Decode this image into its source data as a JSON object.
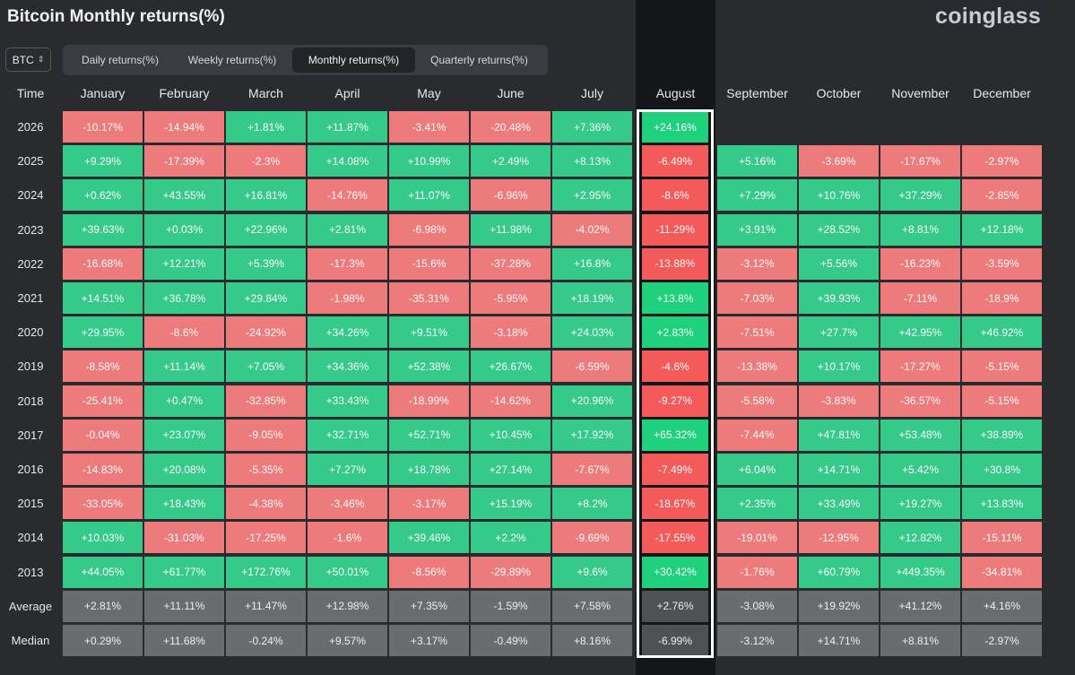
{
  "title": "Bitcoin Monthly returns(%)",
  "logo": "coinglass",
  "asset_select": {
    "value": "BTC"
  },
  "tabs": [
    "Daily returns(%)",
    "Weekly returns(%)",
    "Monthly returns(%)",
    "Quarterly returns(%)"
  ],
  "active_tab": "Monthly returns(%)",
  "colors": {
    "positive": "#35c98a",
    "negative": "#ee7b7b",
    "stat": "#6b6c70",
    "highlight_border": "#ffffff"
  },
  "highlighted_month": "August",
  "table": {
    "corner_label": "Time",
    "months": [
      "January",
      "February",
      "March",
      "April",
      "May",
      "June",
      "July",
      "August",
      "September",
      "October",
      "November",
      "December"
    ],
    "rows": [
      {
        "label": "2026",
        "values": [
          "-10.17%",
          "-14.94%",
          "+1.81%",
          "+11.87%",
          "-3.41%",
          "-20.48%",
          "+7.36%",
          "+24.16%",
          "",
          "",
          "",
          ""
        ]
      },
      {
        "label": "2025",
        "values": [
          "+9.29%",
          "-17.39%",
          "-2.3%",
          "+14.08%",
          "+10.99%",
          "+2.49%",
          "+8.13%",
          "-6.49%",
          "+5.16%",
          "-3.69%",
          "-17.67%",
          "-2.97%"
        ]
      },
      {
        "label": "2024",
        "values": [
          "+0.62%",
          "+43.55%",
          "+16.81%",
          "-14.76%",
          "+11.07%",
          "-6.96%",
          "+2.95%",
          "-8.6%",
          "+7.29%",
          "+10.76%",
          "+37.29%",
          "-2.85%"
        ]
      },
      {
        "label": "2023",
        "values": [
          "+39.63%",
          "+0.03%",
          "+22.96%",
          "+2.81%",
          "-6.98%",
          "+11.98%",
          "-4.02%",
          "-11.29%",
          "+3.91%",
          "+28.52%",
          "+8.81%",
          "+12.18%"
        ]
      },
      {
        "label": "2022",
        "values": [
          "-16.68%",
          "+12.21%",
          "+5.39%",
          "-17.3%",
          "-15.6%",
          "-37.28%",
          "+16.8%",
          "-13.88%",
          "-3.12%",
          "+5.56%",
          "-16.23%",
          "-3.59%"
        ]
      },
      {
        "label": "2021",
        "values": [
          "+14.51%",
          "+36.78%",
          "+29.84%",
          "-1.98%",
          "-35.31%",
          "-5.95%",
          "+18.19%",
          "+13.8%",
          "-7.03%",
          "+39.93%",
          "-7.11%",
          "-18.9%"
        ]
      },
      {
        "label": "2020",
        "values": [
          "+29.95%",
          "-8.6%",
          "-24.92%",
          "+34.26%",
          "+9.51%",
          "-3.18%",
          "+24.03%",
          "+2.83%",
          "-7.51%",
          "+27.7%",
          "+42.95%",
          "+46.92%"
        ]
      },
      {
        "label": "2019",
        "values": [
          "-8.58%",
          "+11.14%",
          "+7.05%",
          "+34.36%",
          "+52.38%",
          "+26.67%",
          "-6.59%",
          "-4.6%",
          "-13.38%",
          "+10.17%",
          "-17.27%",
          "-5.15%"
        ]
      },
      {
        "label": "2018",
        "values": [
          "-25.41%",
          "+0.47%",
          "-32.85%",
          "+33.43%",
          "-18.99%",
          "-14.62%",
          "+20.96%",
          "-9.27%",
          "-5.58%",
          "-3.83%",
          "-36.57%",
          "-5.15%"
        ]
      },
      {
        "label": "2017",
        "values": [
          "-0.04%",
          "+23.07%",
          "-9.05%",
          "+32.71%",
          "+52.71%",
          "+10.45%",
          "+17.92%",
          "+65.32%",
          "-7.44%",
          "+47.81%",
          "+53.48%",
          "+38.89%"
        ]
      },
      {
        "label": "2016",
        "values": [
          "-14.83%",
          "+20.08%",
          "-5.35%",
          "+7.27%",
          "+18.78%",
          "+27.14%",
          "-7.67%",
          "-7.49%",
          "+6.04%",
          "+14.71%",
          "+5.42%",
          "+30.8%"
        ]
      },
      {
        "label": "2015",
        "values": [
          "-33.05%",
          "+18.43%",
          "-4.38%",
          "-3.46%",
          "-3.17%",
          "+15.19%",
          "+8.2%",
          "-18.67%",
          "+2.35%",
          "+33.49%",
          "+19.27%",
          "+13.83%"
        ]
      },
      {
        "label": "2014",
        "values": [
          "+10.03%",
          "-31.03%",
          "-17.25%",
          "-1.6%",
          "+39.46%",
          "+2.2%",
          "-9.69%",
          "-17.55%",
          "-19.01%",
          "-12.95%",
          "+12.82%",
          "-15.11%"
        ]
      },
      {
        "label": "2013",
        "values": [
          "+44.05%",
          "+61.77%",
          "+172.76%",
          "+50.01%",
          "-8.56%",
          "-29.89%",
          "+9.6%",
          "+30.42%",
          "-1.76%",
          "+60.79%",
          "+449.35%",
          "-34.81%"
        ]
      }
    ],
    "stats": [
      {
        "label": "Average",
        "values": [
          "+2.81%",
          "+11.11%",
          "+11.47%",
          "+12.98%",
          "+7.35%",
          "-1.59%",
          "+7.58%",
          "+2.76%",
          "-3.08%",
          "+19.92%",
          "+41.12%",
          "+4.16%"
        ]
      },
      {
        "label": "Median",
        "values": [
          "+0.29%",
          "+11.68%",
          "-0.24%",
          "+9.57%",
          "+3.17%",
          "-0.49%",
          "+8.16%",
          "-6.99%",
          "-3.12%",
          "+14.71%",
          "+8.81%",
          "-2.97%"
        ]
      }
    ]
  }
}
